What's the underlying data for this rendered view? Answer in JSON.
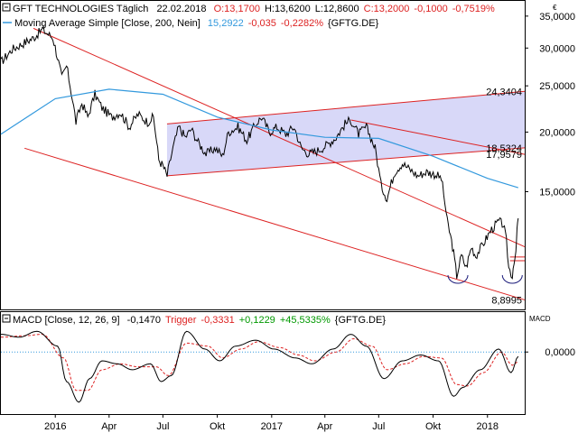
{
  "colors": {
    "price": "#000000",
    "ma200": "#3399dd",
    "trend": "#dd2222",
    "channel_fill": "#d8d8f8",
    "macd": "#000000",
    "trigger": "#dd2222",
    "zero_line": "#3399dd",
    "positive": "#009900",
    "negative": "#dd2222",
    "text": "#000000"
  },
  "header": {
    "price_label": "GFT TECHNOLOGIES Täglich",
    "date": "22.02.2018",
    "ohlc_parts": [
      {
        "text": "O:13,1700",
        "color": "#dd2222"
      },
      {
        "text": "H:13,6200",
        "color": "#000000"
      },
      {
        "text": "L:12,8600",
        "color": "#000000"
      },
      {
        "text": "C:13,2000",
        "color": "#dd2222"
      },
      {
        "text": "-0,1000",
        "color": "#dd2222"
      },
      {
        "text": "-0,7519%",
        "color": "#dd2222"
      }
    ],
    "ma_label": "Moving Average Simple [Close, 200, Nein]",
    "ma_parts": [
      {
        "text": "15,2922",
        "color": "#3399dd"
      },
      {
        "text": "-0,035",
        "color": "#dd2222"
      },
      {
        "text": "-0,2282%",
        "color": "#dd2222"
      },
      {
        "text": "{GFTG.DE}",
        "color": "#000000"
      }
    ]
  },
  "currency_label": "€",
  "macd_header": {
    "label": "MACD [Close, 12, 26, 9]",
    "parts": [
      {
        "text": "-0,1470",
        "color": "#000000"
      },
      {
        "text": "Trigger",
        "color": "#dd2222"
      },
      {
        "text": "-0,3331",
        "color": "#dd2222"
      },
      {
        "text": "+0,1229",
        "color": "#009900"
      },
      {
        "text": "+45,5335%",
        "color": "#009900"
      },
      {
        "text": "{GFTG.DE}",
        "color": "#000000"
      }
    ]
  },
  "macd_axis_label": "MACD",
  "chart_data": {
    "type": "line",
    "title": "GFT TECHNOLOGIES Täglich",
    "price_axis": {
      "scale": "log",
      "ylim": [
        8.5,
        37.5
      ],
      "ticks": [
        15,
        20,
        25,
        30,
        35
      ],
      "tick_labels": [
        "15,0000",
        "20,0000",
        "25,0000",
        "30,0000",
        "35,0000"
      ]
    },
    "time_axis": {
      "range": [
        "2015-10-01",
        "2018-03-05"
      ],
      "ticks": [
        {
          "date": "2016-01-01",
          "label": "2016"
        },
        {
          "date": "2016-04-01",
          "label": "Apr"
        },
        {
          "date": "2016-07-01",
          "label": "Jul"
        },
        {
          "date": "2016-10-01",
          "label": "Okt"
        },
        {
          "date": "2017-01-01",
          "label": "2017"
        },
        {
          "date": "2017-04-01",
          "label": "Apr"
        },
        {
          "date": "2017-07-01",
          "label": "Jul"
        },
        {
          "date": "2017-10-01",
          "label": "Okt"
        },
        {
          "date": "2018-01-01",
          "label": "2018"
        }
      ]
    },
    "series": [
      {
        "name": "GFT TECHNOLOGIES",
        "points": [
          [
            "2015-10-01",
            28.0
          ],
          [
            "2015-10-20",
            29.8
          ],
          [
            "2015-11-10",
            30.8
          ],
          [
            "2015-11-25",
            31.5
          ],
          [
            "2015-12-10",
            32.8
          ],
          [
            "2015-12-28",
            31.5
          ],
          [
            "2016-01-12",
            26.0
          ],
          [
            "2016-01-20",
            27.5
          ],
          [
            "2016-02-05",
            21.0
          ],
          [
            "2016-02-15",
            23.0
          ],
          [
            "2016-02-25",
            21.5
          ],
          [
            "2016-03-08",
            24.0
          ],
          [
            "2016-03-20",
            22.5
          ],
          [
            "2016-04-05",
            21.5
          ],
          [
            "2016-04-20",
            22.0
          ],
          [
            "2016-05-05",
            20.5
          ],
          [
            "2016-05-20",
            21.8
          ],
          [
            "2016-06-05",
            21.0
          ],
          [
            "2016-06-15",
            21.5
          ],
          [
            "2016-06-24",
            17.5
          ],
          [
            "2016-07-01",
            17.0
          ],
          [
            "2016-07-08",
            16.2
          ],
          [
            "2016-07-18",
            18.5
          ],
          [
            "2016-07-28",
            20.5
          ],
          [
            "2016-08-08",
            19.5
          ],
          [
            "2016-08-18",
            20.3
          ],
          [
            "2016-08-30",
            19.0
          ],
          [
            "2016-09-12",
            18.0
          ],
          [
            "2016-09-28",
            18.5
          ],
          [
            "2016-10-10",
            17.8
          ],
          [
            "2016-10-20",
            20.0
          ],
          [
            "2016-11-05",
            20.5
          ],
          [
            "2016-11-20",
            19.2
          ],
          [
            "2016-12-05",
            20.8
          ],
          [
            "2016-12-15",
            21.5
          ],
          [
            "2016-12-28",
            20.0
          ],
          [
            "2017-01-10",
            20.5
          ],
          [
            "2017-01-25",
            19.8
          ],
          [
            "2017-02-08",
            20.5
          ],
          [
            "2017-02-20",
            18.5
          ],
          [
            "2017-03-05",
            18.0
          ],
          [
            "2017-03-20",
            18.3
          ],
          [
            "2017-04-05",
            18.8
          ],
          [
            "2017-04-20",
            19.5
          ],
          [
            "2017-05-05",
            20.8
          ],
          [
            "2017-05-15",
            21.2
          ],
          [
            "2017-05-28",
            19.8
          ],
          [
            "2017-06-10",
            20.5
          ],
          [
            "2017-06-25",
            18.5
          ],
          [
            "2017-07-05",
            15.5
          ],
          [
            "2017-07-15",
            14.5
          ],
          [
            "2017-07-28",
            16.5
          ],
          [
            "2017-08-10",
            17.2
          ],
          [
            "2017-08-20",
            16.8
          ],
          [
            "2017-09-05",
            16.2
          ],
          [
            "2017-09-20",
            16.5
          ],
          [
            "2017-10-05",
            16.3
          ],
          [
            "2017-10-15",
            16.0
          ],
          [
            "2017-10-25",
            13.0
          ],
          [
            "2017-11-03",
            11.5
          ],
          [
            "2017-11-10",
            10.0
          ],
          [
            "2017-11-18",
            11.0
          ],
          [
            "2017-11-26",
            10.4
          ],
          [
            "2017-12-05",
            11.5
          ],
          [
            "2017-12-12",
            11.0
          ],
          [
            "2017-12-22",
            11.5
          ],
          [
            "2018-01-08",
            12.5
          ],
          [
            "2018-01-20",
            13.0
          ],
          [
            "2018-01-28",
            12.8
          ],
          [
            "2018-02-02",
            11.8
          ],
          [
            "2018-02-06",
            10.4
          ],
          [
            "2018-02-12",
            10.0
          ],
          [
            "2018-02-15",
            10.8
          ],
          [
            "2018-02-18",
            11.0
          ],
          [
            "2018-02-20",
            12.5
          ],
          [
            "2018-02-22",
            13.2
          ]
        ]
      },
      {
        "name": "Moving Average Simple [Close, 200, Nein]",
        "points": [
          [
            "2015-10-01",
            19.8
          ],
          [
            "2016-01-01",
            23.5
          ],
          [
            "2016-04-01",
            24.6
          ],
          [
            "2016-07-01",
            24.0
          ],
          [
            "2016-10-01",
            21.5
          ],
          [
            "2017-01-01",
            20.2
          ],
          [
            "2017-04-01",
            19.5
          ],
          [
            "2017-07-01",
            19.4
          ],
          [
            "2017-10-01",
            17.8
          ],
          [
            "2018-01-01",
            16.0
          ],
          [
            "2018-02-22",
            15.29
          ]
        ]
      }
    ],
    "annotations": [
      {
        "label": "24,3404",
        "value": 24.3404
      },
      {
        "label": "18,5324",
        "value": 18.5324
      },
      {
        "label": "17,9579",
        "value": 17.9579
      },
      {
        "label": "8,8995",
        "value": 8.8995
      }
    ],
    "trend_lines": [
      {
        "from": [
          "2015-11-25",
          33.0
        ],
        "to": [
          "2018-03-05",
          11.5
        ]
      },
      {
        "from": [
          "2015-11-10",
          18.5
        ],
        "to": [
          "2018-03-05",
          8.8995
        ]
      },
      {
        "from": [
          "2016-07-08",
          20.8
        ],
        "to": [
          "2018-03-05",
          24.3404
        ]
      },
      {
        "from": [
          "2016-07-08",
          16.2
        ],
        "to": [
          "2018-03-05",
          18.5324
        ]
      },
      {
        "from": [
          "2017-05-15",
          21.2
        ],
        "to": [
          "2018-03-05",
          17.9579
        ]
      }
    ],
    "channel": {
      "corners": [
        [
          "2016-07-08",
          20.8
        ],
        [
          "2018-03-05",
          24.3404
        ],
        [
          "2018-03-05",
          18.5324
        ],
        [
          "2016-07-08",
          16.2
        ]
      ]
    },
    "horizontal_marks": [
      {
        "from": "2018-02-08",
        "to": "2018-03-05",
        "value": 10.95
      },
      {
        "from": "2018-02-08",
        "to": "2018-03-05",
        "value": 10.75
      }
    ],
    "arcs": [
      {
        "date": "2017-11-12",
        "value": 9.9
      },
      {
        "date": "2018-02-12",
        "value": 9.9
      }
    ],
    "macd": {
      "title": "MACD [Close, 12, 26, 9]",
      "ylim": [
        -2.1,
        1.35
      ],
      "ticks": [
        0
      ],
      "tick_labels": [
        "0,0000"
      ],
      "series": [
        {
          "name": "MACD",
          "points": [
            [
              "2015-10-01",
              0.6
            ],
            [
              "2015-11-01",
              0.5
            ],
            [
              "2015-12-01",
              0.7
            ],
            [
              "2016-01-05",
              0.2
            ],
            [
              "2016-01-20",
              -1.0
            ],
            [
              "2016-02-10",
              -1.7
            ],
            [
              "2016-02-28",
              -0.9
            ],
            [
              "2016-03-20",
              -0.3
            ],
            [
              "2016-04-15",
              -0.4
            ],
            [
              "2016-05-10",
              -0.6
            ],
            [
              "2016-06-10",
              -0.4
            ],
            [
              "2016-06-28",
              -1.0
            ],
            [
              "2016-07-15",
              -0.8
            ],
            [
              "2016-08-10",
              0.7
            ],
            [
              "2016-09-10",
              0.1
            ],
            [
              "2016-10-05",
              -0.3
            ],
            [
              "2016-11-01",
              0.2
            ],
            [
              "2016-12-05",
              0.4
            ],
            [
              "2017-01-05",
              0.1
            ],
            [
              "2017-02-10",
              -0.2
            ],
            [
              "2017-03-10",
              -0.4
            ],
            [
              "2017-04-15",
              0.1
            ],
            [
              "2017-05-15",
              0.6
            ],
            [
              "2017-06-10",
              0.2
            ],
            [
              "2017-07-10",
              -0.9
            ],
            [
              "2017-08-10",
              -0.3
            ],
            [
              "2017-09-10",
              -0.1
            ],
            [
              "2017-10-10",
              -0.3
            ],
            [
              "2017-11-05",
              -1.5
            ],
            [
              "2017-11-20",
              -1.2
            ],
            [
              "2017-12-20",
              -0.6
            ],
            [
              "2018-01-20",
              0.1
            ],
            [
              "2018-02-10",
              -0.7
            ],
            [
              "2018-02-22",
              -0.15
            ]
          ]
        },
        {
          "name": "Trigger",
          "points": [
            [
              "2015-10-01",
              0.5
            ],
            [
              "2015-11-10",
              0.55
            ],
            [
              "2015-12-10",
              0.6
            ],
            [
              "2016-01-15",
              -0.2
            ],
            [
              "2016-02-05",
              -1.3
            ],
            [
              "2016-02-25",
              -1.3
            ],
            [
              "2016-03-20",
              -0.6
            ],
            [
              "2016-04-20",
              -0.4
            ],
            [
              "2016-05-20",
              -0.5
            ],
            [
              "2016-06-20",
              -0.5
            ],
            [
              "2016-07-10",
              -0.8
            ],
            [
              "2016-08-10",
              0.3
            ],
            [
              "2016-09-15",
              0.2
            ],
            [
              "2016-10-10",
              -0.2
            ],
            [
              "2016-11-10",
              0.1
            ],
            [
              "2016-12-10",
              0.35
            ],
            [
              "2017-01-15",
              0.15
            ],
            [
              "2017-02-15",
              -0.1
            ],
            [
              "2017-03-15",
              -0.3
            ],
            [
              "2017-04-20",
              0.0
            ],
            [
              "2017-05-20",
              0.45
            ],
            [
              "2017-06-20",
              0.2
            ],
            [
              "2017-07-15",
              -0.6
            ],
            [
              "2017-08-15",
              -0.4
            ],
            [
              "2017-09-15",
              -0.15
            ],
            [
              "2017-10-15",
              -0.2
            ],
            [
              "2017-11-10",
              -1.1
            ],
            [
              "2017-11-28",
              -1.15
            ],
            [
              "2017-12-25",
              -0.7
            ],
            [
              "2018-01-25",
              0.0
            ],
            [
              "2018-02-12",
              -0.45
            ],
            [
              "2018-02-22",
              -0.33
            ]
          ]
        }
      ]
    }
  }
}
